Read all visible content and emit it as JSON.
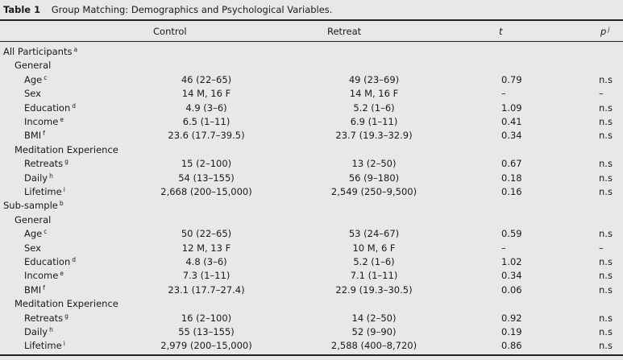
{
  "caption": {
    "label": "Table 1",
    "title": "Group Matching: Demographics and Psychological Variables."
  },
  "header": {
    "control": "Control",
    "retreat": "Retreat",
    "t": "t",
    "p": "p",
    "p_sup": "j"
  },
  "rows": [
    {
      "label": "All Participants",
      "sup": "a",
      "level": 0
    },
    {
      "label": "General",
      "level": 1
    },
    {
      "label": "Age",
      "sup": "c",
      "level": 2,
      "control": "46 (22–65)",
      "retreat": "49 (23–69)",
      "t": "0.79",
      "p": "n.s"
    },
    {
      "label": "Sex",
      "level": 2,
      "control": "14 M, 16 F",
      "retreat": "14 M, 16 F",
      "t": "–",
      "p": "–"
    },
    {
      "label": "Education",
      "sup": "d",
      "level": 2,
      "control": "4.9 (3–6)",
      "retreat": "5.2 (1–6)",
      "t": "1.09",
      "p": "n.s"
    },
    {
      "label": "Income",
      "sup": "e",
      "level": 2,
      "control": "6.5 (1–11)",
      "retreat": "6.9 (1–11)",
      "t": "0.41",
      "p": "n.s"
    },
    {
      "label": "BMI",
      "sup": "f",
      "level": 2,
      "control": "23.6 (17.7–39.5)",
      "retreat": "23.7 (19.3–32.9)",
      "t": "0.34",
      "p": "n.s"
    },
    {
      "label": "Meditation Experience",
      "level": 1
    },
    {
      "label": "Retreats",
      "sup": "g",
      "level": 2,
      "control": "15 (2–100)",
      "retreat": "13 (2–50)",
      "t": "0.67",
      "p": "n.s"
    },
    {
      "label": "Daily",
      "sup": "h",
      "level": 2,
      "control": "54 (13–155)",
      "retreat": "56 (9–180)",
      "t": "0.18",
      "p": "n.s"
    },
    {
      "label": "Lifetime",
      "sup": "i",
      "level": 2,
      "control": "2,668 (200–15,000)",
      "retreat": "2,549 (250–9,500)",
      "t": "0.16",
      "p": "n.s"
    },
    {
      "label": "Sub-sample",
      "sup": "b",
      "level": 0
    },
    {
      "label": "General",
      "level": 1
    },
    {
      "label": "Age",
      "sup": "c",
      "level": 2,
      "control": "50 (22–65)",
      "retreat": "53 (24–67)",
      "t": "0.59",
      "p": "n.s"
    },
    {
      "label": "Sex",
      "level": 2,
      "control": "12 M, 13 F",
      "retreat": "10 M, 6 F",
      "t": "–",
      "p": "–"
    },
    {
      "label": "Education",
      "sup": "d",
      "level": 2,
      "control": "4.8 (3–6)",
      "retreat": "5.2 (1–6)",
      "t": "1.02",
      "p": "n.s"
    },
    {
      "label": "Income",
      "sup": "e",
      "level": 2,
      "control": "7.3 (1–11)",
      "retreat": "7.1 (1–11)",
      "t": "0.34",
      "p": "n.s"
    },
    {
      "label": "BMI",
      "sup": "f",
      "level": 2,
      "control": "23.1 (17.7–27.4)",
      "retreat": "22.9 (19.3–30.5)",
      "t": "0.06",
      "p": "n.s"
    },
    {
      "label": "Meditation Experience",
      "level": 1
    },
    {
      "label": "Retreats",
      "sup": "g",
      "level": 2,
      "control": "16 (2–100)",
      "retreat": "14 (2–50)",
      "t": "0.92",
      "p": "n.s"
    },
    {
      "label": "Daily",
      "sup": "h",
      "level": 2,
      "control": "55 (13–155)",
      "retreat": "52 (9–90)",
      "t": "0.19",
      "p": "n.s"
    },
    {
      "label": "Lifetime",
      "sup": "i",
      "level": 2,
      "control": "2,979 (200–15,000)",
      "retreat": "2,588 (400–8,720)",
      "t": "0.86",
      "p": "n.s"
    }
  ]
}
